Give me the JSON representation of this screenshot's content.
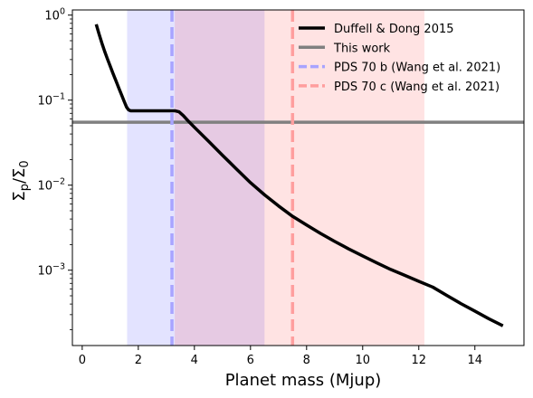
{
  "chart_data": {
    "type": "line",
    "xlabel": "Planet mass (Mjup)",
    "ylabel_main": "Σ",
    "ylabel_sub1": "p",
    "ylabel_mid": "/Σ",
    "ylabel_sub2": "0",
    "xlim": [
      -0.35,
      15.75
    ],
    "ylim": [
      0.00013,
      1.15
    ],
    "yscale": "log",
    "grid": false,
    "legend_position": "top-right",
    "x_ticks": [
      {
        "value": 0,
        "label": "0"
      },
      {
        "value": 2,
        "label": "2"
      },
      {
        "value": 4,
        "label": "4"
      },
      {
        "value": 6,
        "label": "6"
      },
      {
        "value": 8,
        "label": "8"
      },
      {
        "value": 10,
        "label": "10"
      },
      {
        "value": 12,
        "label": "12"
      },
      {
        "value": 14,
        "label": "14"
      }
    ],
    "y_ticks": [
      {
        "value": 1,
        "base": "10",
        "exp": "0"
      },
      {
        "value": 0.1,
        "base": "10",
        "exp": "−1"
      },
      {
        "value": 0.01,
        "base": "10",
        "exp": "−2"
      },
      {
        "value": 0.001,
        "base": "10",
        "exp": "−3"
      }
    ],
    "bands": [
      {
        "name": "PDS 70 b range",
        "x0": 1.6,
        "x1": 6.5,
        "color": "#0000ff",
        "opacity": 0.11
      },
      {
        "name": "PDS 70 c range",
        "x0": 3.3,
        "x1": 12.2,
        "color": "#ff0000",
        "opacity": 0.11
      }
    ],
    "series": [
      {
        "name": "Duffell & Dong 2015",
        "color": "#000000",
        "style": "solid",
        "points": [
          [
            0.5,
            0.78
          ],
          [
            0.6,
            0.6
          ],
          [
            0.7,
            0.47
          ],
          [
            0.8,
            0.375
          ],
          [
            0.9,
            0.305
          ],
          [
            1.0,
            0.25
          ],
          [
            1.1,
            0.205
          ],
          [
            1.2,
            0.17
          ],
          [
            1.3,
            0.14
          ],
          [
            1.4,
            0.116
          ],
          [
            1.5,
            0.096
          ],
          [
            1.58,
            0.083
          ],
          [
            1.65,
            0.077
          ],
          [
            1.72,
            0.075
          ],
          [
            2.0,
            0.075
          ],
          [
            2.5,
            0.075
          ],
          [
            3.0,
            0.075
          ],
          [
            3.3,
            0.075
          ],
          [
            3.45,
            0.073
          ],
          [
            3.6,
            0.066
          ],
          [
            3.8,
            0.056
          ],
          [
            4.0,
            0.048
          ],
          [
            4.5,
            0.033
          ],
          [
            5.0,
            0.0225
          ],
          [
            5.5,
            0.0155
          ],
          [
            6.0,
            0.0107
          ],
          [
            6.5,
            0.0077
          ],
          [
            7.0,
            0.0057
          ],
          [
            7.5,
            0.0043
          ],
          [
            8.0,
            0.0034
          ],
          [
            8.5,
            0.0027
          ],
          [
            9.0,
            0.00218
          ],
          [
            9.5,
            0.00178
          ],
          [
            10.0,
            0.00147
          ],
          [
            10.5,
            0.00122
          ],
          [
            11.0,
            0.00102
          ],
          [
            11.5,
            0.00087
          ],
          [
            12.0,
            0.00074
          ],
          [
            12.5,
            0.000632
          ],
          [
            13.0,
            0.000505
          ],
          [
            13.5,
            0.000405
          ],
          [
            14.0,
            0.00033
          ],
          [
            14.5,
            0.000268
          ],
          [
            15.0,
            0.000222
          ]
        ]
      },
      {
        "name": "This work",
        "color": "#808080",
        "style": "hline",
        "y": 0.055
      },
      {
        "name": "PDS 70 b (Wang et al. 2021)",
        "color": "#a8a4ff",
        "style": "dashed-vline",
        "x": 3.2
      },
      {
        "name": "PDS 70 c (Wang et al. 2021)",
        "color": "#ff9e9e",
        "style": "dashed-vline",
        "x": 7.5
      }
    ]
  }
}
